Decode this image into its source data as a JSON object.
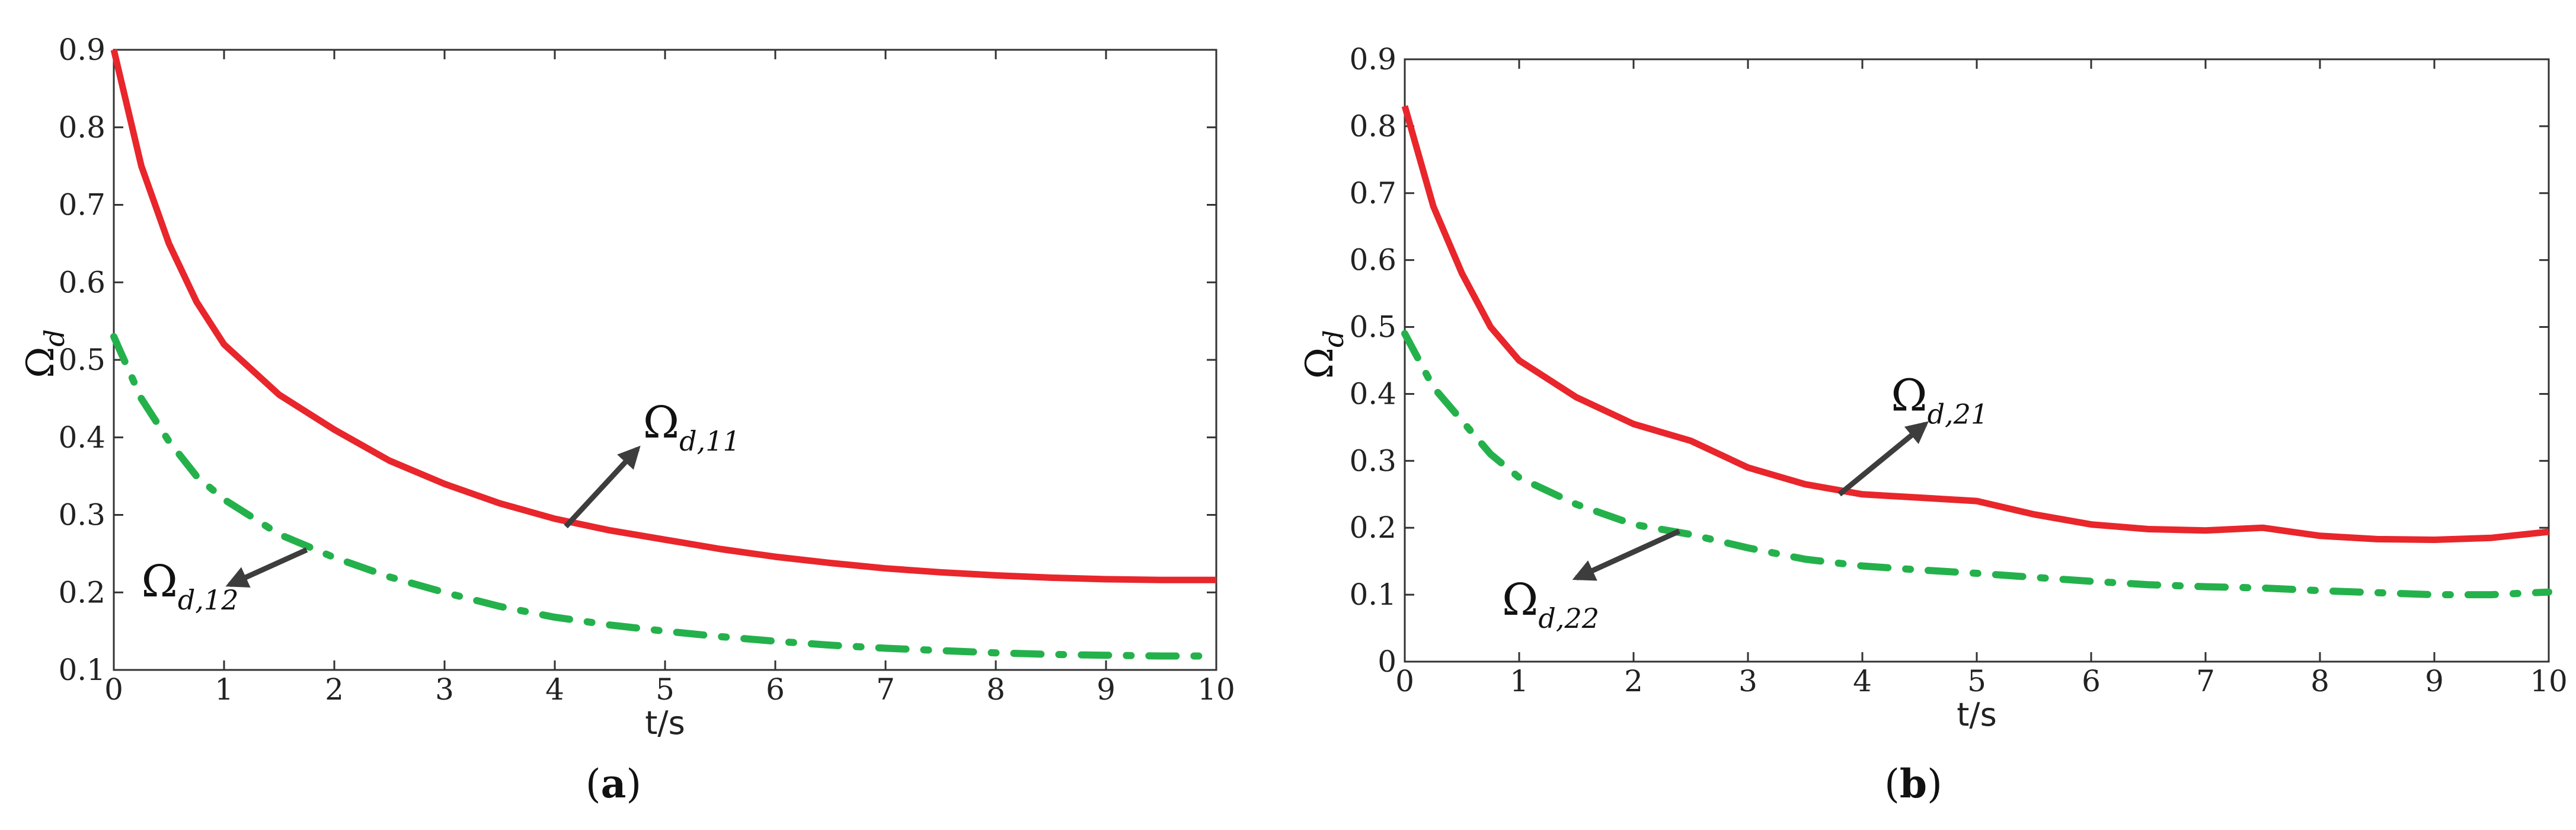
{
  "colors": {
    "series1": "#e8262b",
    "series2": "#24b14c",
    "arrow": "#3d3d3d",
    "axis": "#333333"
  },
  "chart_data": [
    {
      "type": "line",
      "panel_label": "(a)",
      "panel_letter": "a",
      "xlabel": "t/s",
      "ylabel": "Ω_d",
      "ylabel_main": "Ω",
      "ylabel_sub": "d",
      "xlim": [
        0,
        10
      ],
      "ylim": [
        0.1,
        0.9
      ],
      "xticks": [
        "0",
        "1",
        "2",
        "3",
        "4",
        "5",
        "6",
        "7",
        "8",
        "9",
        "10"
      ],
      "yticks": [
        "0.1",
        "0.2",
        "0.3",
        "0.4",
        "0.5",
        "0.6",
        "0.7",
        "0.8",
        "0.9"
      ],
      "grid": false,
      "series": [
        {
          "name": "Ω_d,11",
          "color": "#e8262b",
          "style": "solid",
          "x": [
            0,
            0.25,
            0.5,
            0.75,
            1,
            1.5,
            2,
            2.5,
            3,
            3.5,
            4,
            4.5,
            5,
            5.5,
            6,
            6.5,
            7,
            7.5,
            8,
            8.5,
            9,
            9.5,
            10
          ],
          "y": [
            0.9,
            0.75,
            0.65,
            0.575,
            0.52,
            0.455,
            0.41,
            0.37,
            0.34,
            0.315,
            0.295,
            0.28,
            0.268,
            0.256,
            0.246,
            0.238,
            0.231,
            0.226,
            0.222,
            0.219,
            0.217,
            0.216,
            0.216
          ]
        },
        {
          "name": "Ω_d,12",
          "color": "#24b14c",
          "style": "dashdot",
          "x": [
            0,
            0.25,
            0.5,
            0.75,
            1,
            1.5,
            2,
            2.5,
            3,
            3.5,
            4,
            4.5,
            5,
            5.5,
            6,
            6.5,
            7,
            7.5,
            8,
            8.5,
            9,
            9.5,
            10
          ],
          "y": [
            0.53,
            0.45,
            0.395,
            0.35,
            0.32,
            0.275,
            0.245,
            0.22,
            0.2,
            0.182,
            0.168,
            0.158,
            0.15,
            0.143,
            0.137,
            0.132,
            0.128,
            0.125,
            0.122,
            0.12,
            0.119,
            0.118,
            0.118
          ]
        }
      ],
      "annotations": [
        {
          "series": "Ω_d,11",
          "main": "Ω",
          "sub": "d,11",
          "arrow_from": [
            4.1,
            0.285
          ],
          "arrow_to": [
            4.75,
            0.385
          ],
          "text_at": [
            4.8,
            0.4
          ]
        },
        {
          "series": "Ω_d,12",
          "main": "Ω",
          "sub": "d,12",
          "arrow_from": [
            1.75,
            0.255
          ],
          "arrow_to": [
            1.05,
            0.21
          ],
          "text_at": [
            0.25,
            0.195
          ]
        }
      ]
    },
    {
      "type": "line",
      "panel_label": "(b)",
      "panel_letter": "b",
      "xlabel": "t/s",
      "ylabel": "Ω_d",
      "ylabel_main": "Ω",
      "ylabel_sub": "d",
      "xlim": [
        0,
        10
      ],
      "ylim": [
        0,
        0.9
      ],
      "xticks": [
        "0",
        "1",
        "2",
        "3",
        "4",
        "5",
        "6",
        "7",
        "8",
        "9",
        "10"
      ],
      "yticks": [
        "0",
        "0.1",
        "0.2",
        "0.3",
        "0.4",
        "0.5",
        "0.6",
        "0.7",
        "0.8",
        "0.9"
      ],
      "grid": false,
      "series": [
        {
          "name": "Ω_d,21",
          "color": "#e8262b",
          "style": "solid",
          "x": [
            0,
            0.25,
            0.5,
            0.75,
            1,
            1.5,
            2,
            2.5,
            3,
            3.5,
            4,
            4.5,
            5,
            5.5,
            6,
            6.5,
            7,
            7.5,
            8,
            8.5,
            9,
            9.5,
            10
          ],
          "y": [
            0.83,
            0.68,
            0.58,
            0.5,
            0.45,
            0.395,
            0.355,
            0.33,
            0.29,
            0.265,
            0.25,
            0.245,
            0.24,
            0.22,
            0.205,
            0.198,
            0.196,
            0.2,
            0.188,
            0.183,
            0.182,
            0.185,
            0.194
          ]
        },
        {
          "name": "Ω_d,22",
          "color": "#24b14c",
          "style": "dashdot",
          "x": [
            0,
            0.25,
            0.5,
            0.75,
            1,
            1.5,
            2,
            2.5,
            3,
            3.5,
            4,
            4.5,
            5,
            5.5,
            6,
            6.5,
            7,
            7.5,
            8,
            8.5,
            9,
            9.5,
            10
          ],
          "y": [
            0.49,
            0.41,
            0.36,
            0.31,
            0.275,
            0.235,
            0.205,
            0.19,
            0.17,
            0.153,
            0.143,
            0.137,
            0.132,
            0.126,
            0.12,
            0.115,
            0.112,
            0.11,
            0.106,
            0.103,
            0.1,
            0.1,
            0.104
          ]
        }
      ],
      "annotations": [
        {
          "series": "Ω_d,21",
          "main": "Ω",
          "sub": "d,21",
          "arrow_from": [
            3.8,
            0.25
          ],
          "arrow_to": [
            4.55,
            0.355
          ],
          "text_at": [
            4.25,
            0.375
          ]
        },
        {
          "series": "Ω_d,22",
          "main": "Ω",
          "sub": "d,22",
          "arrow_from": [
            2.4,
            0.195
          ],
          "arrow_to": [
            1.5,
            0.125
          ],
          "text_at": [
            0.85,
            0.07
          ]
        }
      ]
    }
  ]
}
